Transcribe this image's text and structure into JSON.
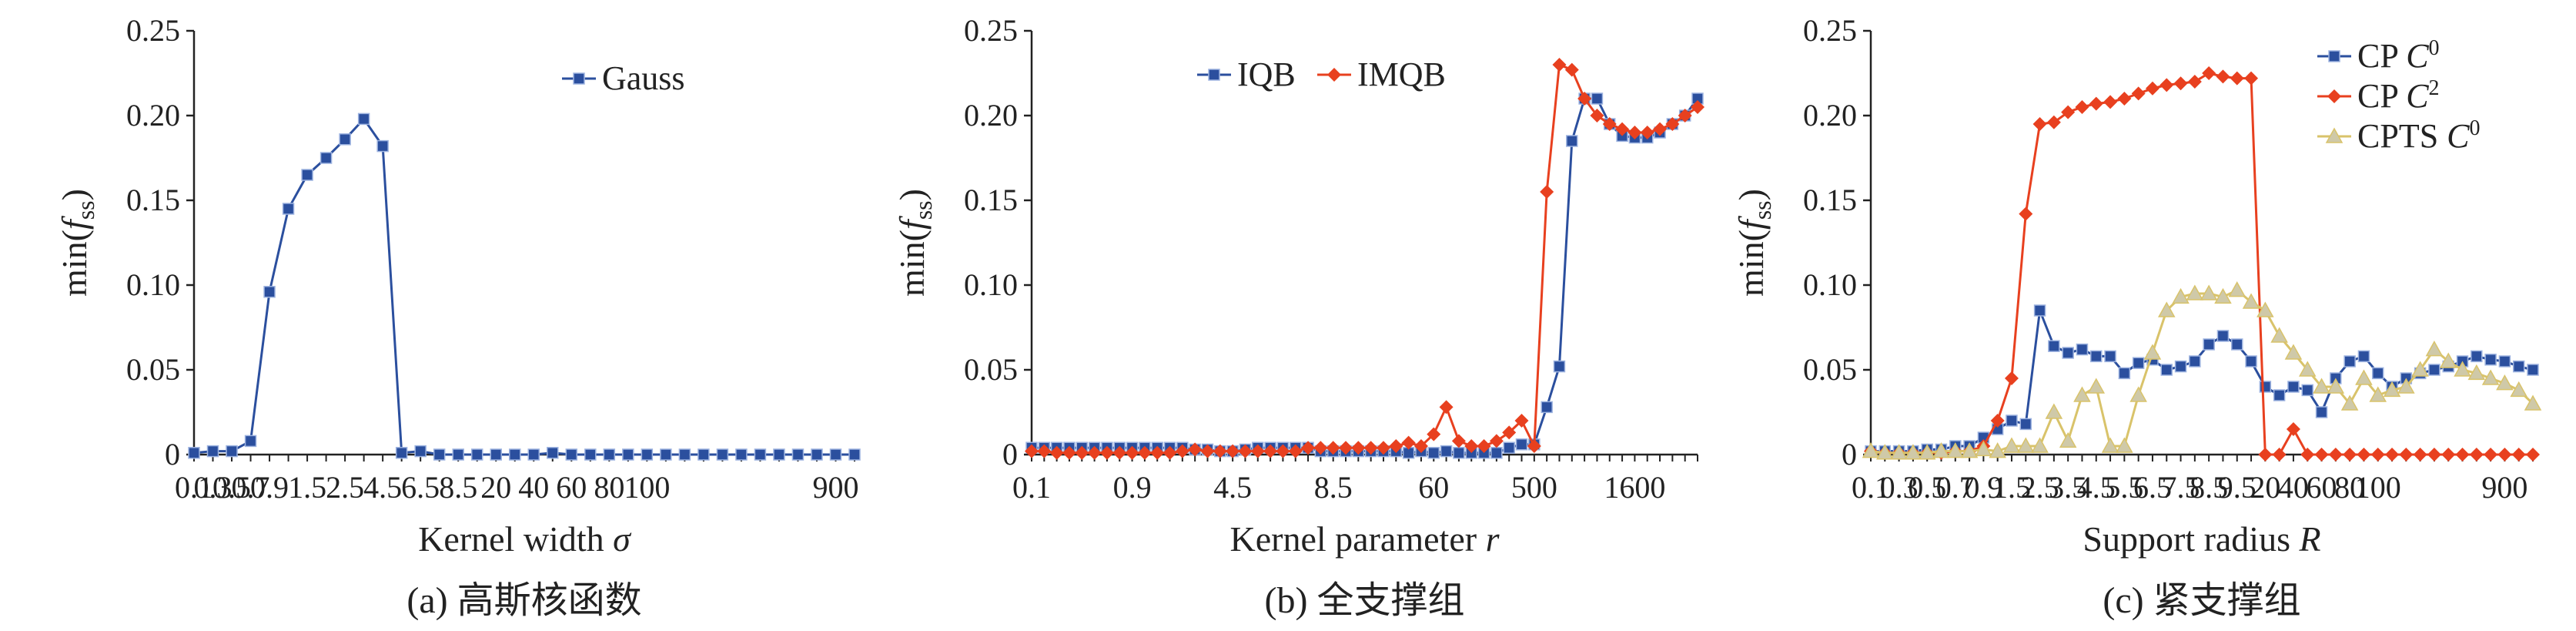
{
  "figure": {
    "ylabel_prefix": "min(",
    "ylabel_f": "f",
    "ylabel_sub": "ss",
    "ylabel_suffix": ")"
  },
  "chart_data": [
    {
      "type": "line",
      "panel": "a",
      "caption": "(a) 高斯核函数",
      "xlabel_text": "Kernel width ",
      "xlabel_symbol": "σ",
      "ylim": [
        0,
        0.25
      ],
      "yticks": [
        "0",
        "0.05",
        "0.10",
        "0.15",
        "0.20",
        "0.25"
      ],
      "ytick_values": [
        0,
        0.05,
        0.1,
        0.15,
        0.2,
        0.25
      ],
      "xticks": [
        "0.1",
        "0.3",
        "0.5",
        "0.7",
        "0.9",
        "1.5",
        "2.5",
        "4.5",
        "6.5",
        "8.5",
        "20",
        "40",
        "60",
        "80",
        "100",
        "900"
      ],
      "xtick_indices": [
        0,
        1,
        2,
        3,
        4,
        6,
        8,
        10,
        12,
        14,
        16,
        18,
        20,
        22,
        24,
        34
      ],
      "n_points": 36,
      "legend_position": "top-right",
      "series": [
        {
          "name": "Gauss",
          "color": "#2b4f9e",
          "marker": "square",
          "values": [
            0.001,
            0.002,
            0.002,
            0.008,
            0.096,
            0.145,
            0.165,
            0.175,
            0.186,
            0.198,
            0.182,
            0.001,
            0.002,
            0.0,
            0.0,
            0.0,
            0.0,
            0.0,
            0.0,
            0.001,
            0.0,
            0.0,
            0.0,
            0.0,
            0.0,
            0.0,
            0.0,
            0.0,
            0.0,
            0.0,
            0.0,
            0.0,
            0.0,
            0.0,
            0.0,
            0.0
          ]
        }
      ]
    },
    {
      "type": "line",
      "panel": "b",
      "caption": "(b) 全支撑组",
      "xlabel_text": "Kernel parameter ",
      "xlabel_symbol": "r",
      "ylim": [
        0,
        0.25
      ],
      "yticks": [
        "0",
        "0.05",
        "0.10",
        "0.15",
        "0.20",
        "0.25"
      ],
      "ytick_values": [
        0,
        0.05,
        0.1,
        0.15,
        0.2,
        0.25
      ],
      "xticks": [
        "0.1",
        "0.9",
        "4.5",
        "8.5",
        "60",
        "500",
        "1600"
      ],
      "xtick_indices": [
        0,
        8,
        16,
        24,
        32,
        40,
        48
      ],
      "n_points": 54,
      "legend_position": "top-center",
      "series": [
        {
          "name": "IQB",
          "color": "#2b4f9e",
          "marker": "square",
          "values": [
            0.004,
            0.004,
            0.004,
            0.004,
            0.004,
            0.004,
            0.004,
            0.004,
            0.004,
            0.004,
            0.004,
            0.004,
            0.004,
            0.003,
            0.003,
            0.002,
            0.002,
            0.003,
            0.004,
            0.004,
            0.004,
            0.004,
            0.004,
            0.002,
            0.002,
            0.002,
            0.002,
            0.002,
            0.002,
            0.002,
            0.001,
            0.002,
            0.001,
            0.002,
            0.001,
            0.001,
            0.001,
            0.001,
            0.004,
            0.006,
            0.006,
            0.028,
            0.052,
            0.185,
            0.21,
            0.21,
            0.195,
            0.188,
            0.187,
            0.187,
            0.19,
            0.195,
            0.2,
            0.21
          ]
        },
        {
          "name": "IMQB",
          "color": "#e8401f",
          "marker": "diamond",
          "values": [
            0.002,
            0.002,
            0.001,
            0.001,
            0.001,
            0.001,
            0.001,
            0.001,
            0.001,
            0.001,
            0.001,
            0.001,
            0.002,
            0.003,
            0.002,
            0.002,
            0.002,
            0.002,
            0.002,
            0.002,
            0.002,
            0.002,
            0.004,
            0.004,
            0.004,
            0.004,
            0.004,
            0.004,
            0.004,
            0.005,
            0.007,
            0.005,
            0.012,
            0.028,
            0.008,
            0.005,
            0.005,
            0.008,
            0.013,
            0.02,
            0.005,
            0.155,
            0.23,
            0.227,
            0.21,
            0.2,
            0.195,
            0.192,
            0.19,
            0.19,
            0.192,
            0.195,
            0.2,
            0.205
          ]
        }
      ]
    },
    {
      "type": "line",
      "panel": "c",
      "caption": "(c) 紧支撑组",
      "xlabel_text": "Support radius ",
      "xlabel_symbol": "R",
      "ylim": [
        0,
        0.25
      ],
      "yticks": [
        "0",
        "0.05",
        "0.10",
        "0.15",
        "0.20",
        "0.25"
      ],
      "ytick_values": [
        0,
        0.05,
        0.1,
        0.15,
        0.2,
        0.25
      ],
      "xticks": [
        "0.1",
        "0.3",
        "0.5",
        "0.7",
        "0.9",
        "1.5",
        "2.5",
        "3.5",
        "4.5",
        "5.5",
        "6.5",
        "7.5",
        "8.5",
        "9.5",
        "20",
        "40",
        "60",
        "80",
        "100",
        "900"
      ],
      "xtick_indices": [
        0,
        2,
        4,
        6,
        8,
        10,
        12,
        14,
        16,
        18,
        20,
        22,
        24,
        26,
        28,
        30,
        32,
        34,
        36,
        45
      ],
      "n_points": 48,
      "legend_position": "top-right",
      "series": [
        {
          "name": "CP ",
          "sup": "0",
          "color": "#2b4f9e",
          "marker": "square",
          "values": [
            0.002,
            0.002,
            0.002,
            0.002,
            0.003,
            0.003,
            0.005,
            0.005,
            0.01,
            0.015,
            0.02,
            0.018,
            0.085,
            0.064,
            0.06,
            0.062,
            0.058,
            0.058,
            0.048,
            0.054,
            0.056,
            0.05,
            0.052,
            0.055,
            0.065,
            0.07,
            0.065,
            0.055,
            0.04,
            0.035,
            0.04,
            0.038,
            0.025,
            0.045,
            0.055,
            0.058,
            0.048,
            0.04,
            0.045,
            0.048,
            0.05,
            0.052,
            0.055,
            0.058,
            0.056,
            0.055,
            0.052,
            0.05
          ]
        },
        {
          "name": "CP ",
          "sup": "2",
          "color": "#e8401f",
          "marker": "diamond",
          "values": [
            0.002,
            0.001,
            0.001,
            0.001,
            0.001,
            0.001,
            0.002,
            0.002,
            0.005,
            0.02,
            0.045,
            0.142,
            0.195,
            0.196,
            0.202,
            0.205,
            0.207,
            0.208,
            0.21,
            0.213,
            0.216,
            0.218,
            0.219,
            0.22,
            0.225,
            0.223,
            0.222,
            0.222,
            0.0,
            0.0,
            0.015,
            0.0,
            0.0,
            0.0,
            0.0,
            0.0,
            0.0,
            0.0,
            0.0,
            0.0,
            0.0,
            0.0,
            0.0,
            0.0,
            0.0,
            0.0,
            0.0,
            0.0
          ]
        },
        {
          "name": "CPTS ",
          "sup": "0",
          "color": "#d9c36a",
          "marker": "triangle",
          "values": [
            0.002,
            0.001,
            0.001,
            0.001,
            0.001,
            0.002,
            0.002,
            0.002,
            0.003,
            0.002,
            0.005,
            0.005,
            0.005,
            0.025,
            0.008,
            0.035,
            0.04,
            0.005,
            0.005,
            0.035,
            0.06,
            0.085,
            0.093,
            0.095,
            0.095,
            0.093,
            0.097,
            0.09,
            0.085,
            0.07,
            0.06,
            0.05,
            0.04,
            0.04,
            0.03,
            0.045,
            0.035,
            0.038,
            0.04,
            0.05,
            0.062,
            0.055,
            0.05,
            0.048,
            0.045,
            0.042,
            0.038,
            0.03
          ]
        }
      ]
    }
  ]
}
